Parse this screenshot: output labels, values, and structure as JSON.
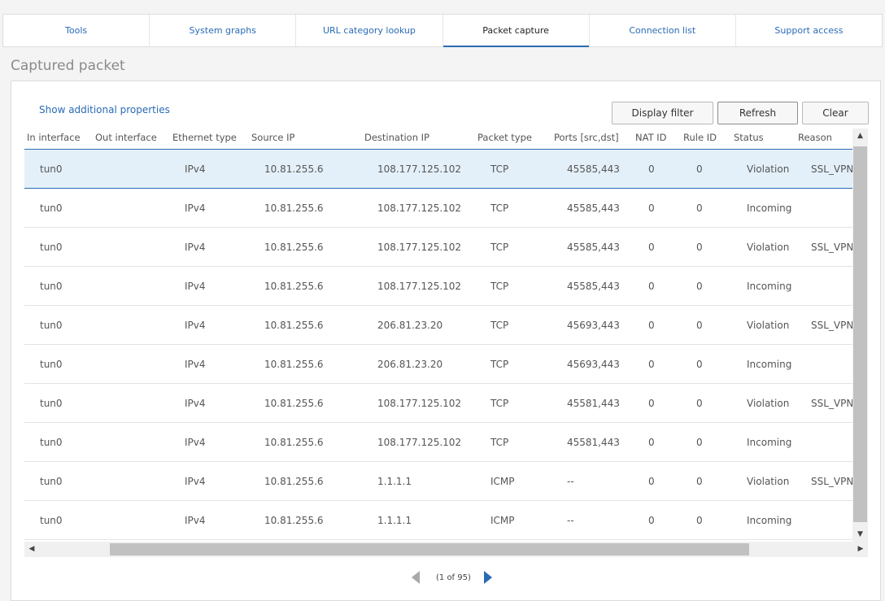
{
  "tabs": [
    {
      "label": "Tools"
    },
    {
      "label": "System graphs"
    },
    {
      "label": "URL category lookup"
    },
    {
      "label": "Packet capture"
    },
    {
      "label": "Connection list"
    },
    {
      "label": "Support access"
    }
  ],
  "active_tab": "Packet capture",
  "section_title": "Captured packet",
  "toolbar": {
    "show_props": "Show additional properties",
    "display_filter": "Display filter",
    "refresh": "Refresh",
    "clear": "Clear"
  },
  "columns": [
    "In interface",
    "Out interface",
    "Ethernet type",
    "Source IP",
    "Destination IP",
    "Packet type",
    "Ports [src,dst]",
    "NAT ID",
    "Rule ID",
    "Status",
    "Reason"
  ],
  "rows": [
    {
      "in": "tun0",
      "out": "",
      "eth": "IPv4",
      "src": "10.81.255.6",
      "dst": "108.177.125.102",
      "ptype": "TCP",
      "ports": "45585,443",
      "nat": "0",
      "rule": "0",
      "status": "Violation",
      "reason": "SSL_VPN"
    },
    {
      "in": "tun0",
      "out": "",
      "eth": "IPv4",
      "src": "10.81.255.6",
      "dst": "108.177.125.102",
      "ptype": "TCP",
      "ports": "45585,443",
      "nat": "0",
      "rule": "0",
      "status": "Incoming",
      "reason": ""
    },
    {
      "in": "tun0",
      "out": "",
      "eth": "IPv4",
      "src": "10.81.255.6",
      "dst": "108.177.125.102",
      "ptype": "TCP",
      "ports": "45585,443",
      "nat": "0",
      "rule": "0",
      "status": "Violation",
      "reason": "SSL_VPN"
    },
    {
      "in": "tun0",
      "out": "",
      "eth": "IPv4",
      "src": "10.81.255.6",
      "dst": "108.177.125.102",
      "ptype": "TCP",
      "ports": "45585,443",
      "nat": "0",
      "rule": "0",
      "status": "Incoming",
      "reason": ""
    },
    {
      "in": "tun0",
      "out": "",
      "eth": "IPv4",
      "src": "10.81.255.6",
      "dst": "206.81.23.20",
      "ptype": "TCP",
      "ports": "45693,443",
      "nat": "0",
      "rule": "0",
      "status": "Violation",
      "reason": "SSL_VPN"
    },
    {
      "in": "tun0",
      "out": "",
      "eth": "IPv4",
      "src": "10.81.255.6",
      "dst": "206.81.23.20",
      "ptype": "TCP",
      "ports": "45693,443",
      "nat": "0",
      "rule": "0",
      "status": "Incoming",
      "reason": ""
    },
    {
      "in": "tun0",
      "out": "",
      "eth": "IPv4",
      "src": "10.81.255.6",
      "dst": "108.177.125.102",
      "ptype": "TCP",
      "ports": "45581,443",
      "nat": "0",
      "rule": "0",
      "status": "Violation",
      "reason": "SSL_VPN"
    },
    {
      "in": "tun0",
      "out": "",
      "eth": "IPv4",
      "src": "10.81.255.6",
      "dst": "108.177.125.102",
      "ptype": "TCP",
      "ports": "45581,443",
      "nat": "0",
      "rule": "0",
      "status": "Incoming",
      "reason": ""
    },
    {
      "in": "tun0",
      "out": "",
      "eth": "IPv4",
      "src": "10.81.255.6",
      "dst": "1.1.1.1",
      "ptype": "ICMP",
      "ports": "--",
      "nat": "0",
      "rule": "0",
      "status": "Violation",
      "reason": "SSL_VPN"
    },
    {
      "in": "tun0",
      "out": "",
      "eth": "IPv4",
      "src": "10.81.255.6",
      "dst": "1.1.1.1",
      "ptype": "ICMP",
      "ports": "--",
      "nat": "0",
      "rule": "0",
      "status": "Incoming",
      "reason": ""
    }
  ],
  "selected_row": 0,
  "pager": {
    "info": "(1 of 95)"
  },
  "scroll_icons": {
    "up": "triangle-up",
    "down": "triangle-down",
    "left": "triangle-left",
    "right": "triangle-right"
  }
}
